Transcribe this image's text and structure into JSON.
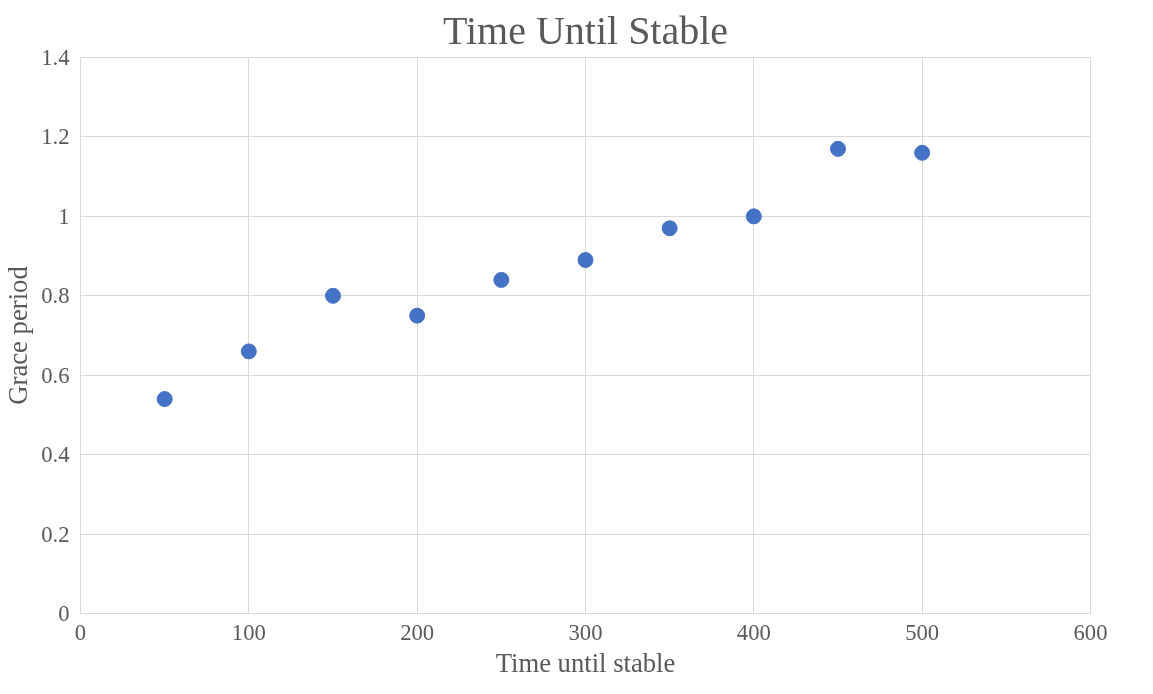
{
  "chart_data": {
    "type": "scatter",
    "title": "Time Until Stable",
    "xlabel": "Time until stable",
    "ylabel": "Grace period",
    "x": [
      50,
      100,
      150,
      200,
      250,
      300,
      350,
      400,
      450,
      500
    ],
    "series": [
      {
        "color": "#4472c4",
        "values": [
          0.54,
          0.66,
          0.8,
          0.75,
          0.84,
          0.89,
          0.97,
          1.0,
          1.17,
          1.16
        ]
      }
    ],
    "xlim": [
      0,
      600
    ],
    "xticks": [
      0,
      100,
      200,
      300,
      400,
      500,
      600
    ],
    "ylim": [
      0,
      1.4
    ],
    "yticks": [
      0,
      0.2,
      0.4,
      0.6,
      0.8,
      1,
      1.2,
      1.4
    ],
    "grid": true,
    "marker": "circle"
  }
}
